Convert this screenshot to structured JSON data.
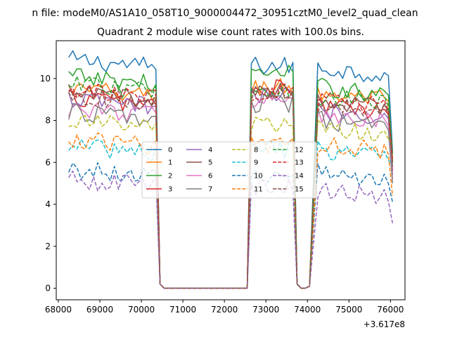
{
  "chart_data": {
    "type": "line",
    "suptitle": "n file: modeM0/AS1A10_058T10_9000004472_30951cztM0_level2_quad_clean",
    "title": "Quadrant 2 module wise count rates with 100.0s bins.",
    "xlabel": "",
    "ylabel": "",
    "x_offset_label": "+3.617e8",
    "xlim": [
      67950,
      76350
    ],
    "ylim": [
      -0.55,
      11.8
    ],
    "xticks": [
      68000,
      69000,
      70000,
      71000,
      72000,
      73000,
      74000,
      75000,
      76000
    ],
    "yticks": [
      0,
      2,
      4,
      6,
      8,
      10
    ],
    "legend": {
      "placement": "center",
      "ncol": 4
    },
    "segments": [
      {
        "x0": 68250,
        "x1": 70350
      },
      {
        "x0": 72650,
        "x1": 73650
      },
      {
        "x0": 74250,
        "x1": 76050
      }
    ],
    "gap_x": [
      70450,
      70550,
      72550,
      73750,
      73850,
      73950,
      74050
    ],
    "gap_y": {
      "70450": 0.2,
      "70550": 0.0,
      "72550": 0.0,
      "73750": 0.2,
      "73850": 0.0,
      "73950": 0.0,
      "74050": 0.1
    },
    "series": [
      {
        "name": "0",
        "color": "#1f77b4",
        "dash": "solid",
        "levels": [
          10.9,
          10.6,
          10.5
        ],
        "end": 6.5
      },
      {
        "name": "1",
        "color": "#ff7f0e",
        "dash": "solid",
        "levels": [
          9.5,
          9.6,
          9.3
        ],
        "end": 6.2
      },
      {
        "name": "2",
        "color": "#2ca02c",
        "dash": "solid",
        "levels": [
          10.1,
          10.2,
          9.6
        ],
        "end": 6.0
      },
      {
        "name": "3",
        "color": "#d62728",
        "dash": "solid",
        "levels": [
          9.1,
          9.5,
          8.7
        ],
        "end": 5.6
      },
      {
        "name": "4",
        "color": "#9467bd",
        "dash": "solid",
        "levels": [
          9.0,
          9.2,
          8.5
        ],
        "end": 5.4
      },
      {
        "name": "5",
        "color": "#8c564b",
        "dash": "solid",
        "levels": [
          9.3,
          9.4,
          8.9
        ],
        "end": 5.8
      },
      {
        "name": "6",
        "color": "#e377c2",
        "dash": "solid",
        "levels": [
          8.6,
          9.0,
          8.2
        ],
        "end": 5.2
      },
      {
        "name": "7",
        "color": "#7f7f7f",
        "dash": "solid",
        "levels": [
          8.4,
          8.8,
          8.0
        ],
        "end": 5.0
      },
      {
        "name": "8",
        "color": "#bcbd22",
        "dash": "dashed",
        "levels": [
          8.0,
          7.8,
          7.6
        ],
        "end": 6.9
      },
      {
        "name": "9",
        "color": "#17becf",
        "dash": "dashed",
        "levels": [
          6.8,
          6.6,
          6.6
        ],
        "end": 5.9
      },
      {
        "name": "10",
        "color": "#1f77b4",
        "dash": "dashed",
        "levels": [
          5.7,
          5.5,
          5.5
        ],
        "end": 4.1
      },
      {
        "name": "11",
        "color": "#ff7f0e",
        "dash": "dashed",
        "levels": [
          7.1,
          6.8,
          6.9
        ],
        "end": 4.4
      },
      {
        "name": "12",
        "color": "#2ca02c",
        "dash": "dashed",
        "levels": [
          9.7,
          9.5,
          9.2
        ],
        "end": 6.4
      },
      {
        "name": "13",
        "color": "#d62728",
        "dash": "dashed",
        "levels": [
          9.4,
          9.3,
          9.0
        ],
        "end": 6.1
      },
      {
        "name": "14",
        "color": "#9467bd",
        "dash": "dashed",
        "levels": [
          5.2,
          4.8,
          4.7
        ],
        "end": 3.1
      },
      {
        "name": "15",
        "color": "#8c564b",
        "dash": "dashed",
        "levels": [
          9.2,
          9.2,
          8.8
        ],
        "end": 6.0
      }
    ]
  }
}
